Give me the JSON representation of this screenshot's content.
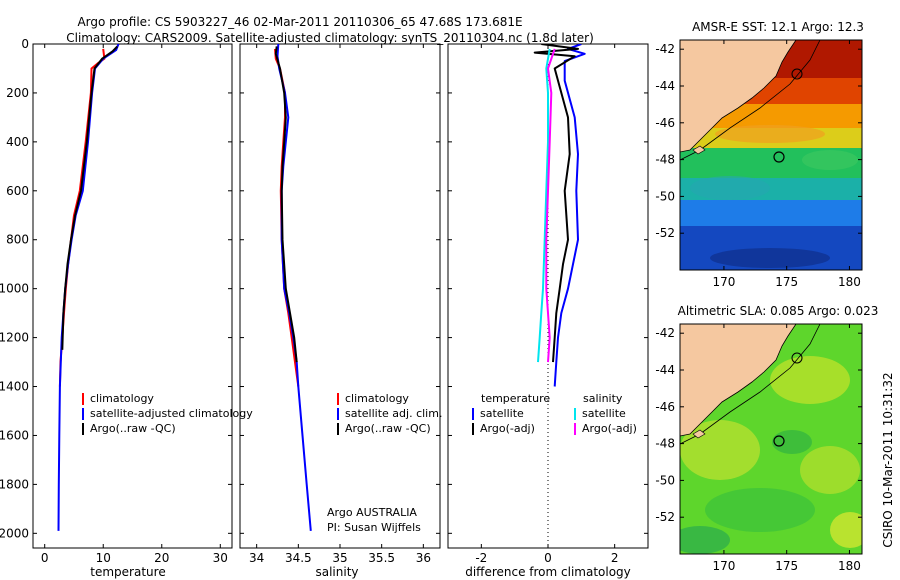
{
  "header": {
    "line1": "Argo profile: CS 5903227_46 02-Mar-2011 20110306_65 47.68S 173.681E",
    "line2": "Climatology: CARS2009. Satellite-adjusted climatology: synTS_20110304.nc (1.8d later)"
  },
  "side_label": "CSIRO 10-Mar-2011 10:31:32",
  "colors": {
    "red": "#ff0000",
    "blue": "#0000ff",
    "black": "#000000",
    "cyan": "#00e5ee",
    "magenta": "#ff00ff",
    "land": "#f5c8a0"
  },
  "chart_data": [
    {
      "type": "line",
      "name": "temperature-profile",
      "xlabel": "temperature",
      "ylabel": "",
      "xlim": [
        -2,
        32
      ],
      "ylim": [
        2060,
        0
      ],
      "xticks": [
        "0",
        "10",
        "20",
        "30"
      ],
      "yticks": [
        "0",
        "200",
        "400",
        "600",
        "800",
        "1000",
        "1200",
        "1400",
        "1600",
        "1800",
        "2000"
      ],
      "legend": [
        "climatology",
        "satellite-adjusted climatology",
        "Argo(..raw -QC)"
      ],
      "series": [
        {
          "name": "climatology",
          "color": "red",
          "x": [
            10.0,
            10.2,
            9.0,
            8.0,
            7.9,
            7.0,
            6.0,
            5.0,
            4.5,
            4.0,
            3.6,
            3.3,
            3.0,
            2.7,
            2.6
          ],
          "y": [
            20,
            60,
            80,
            100,
            200,
            400,
            600,
            700,
            800,
            900,
            1000,
            1100,
            1200,
            1300,
            1400
          ]
        },
        {
          "name": "satellite-adjusted climatology",
          "color": "blue",
          "x": [
            12.6,
            12.2,
            10.0,
            8.6,
            8.1,
            7.4,
            6.5,
            5.3,
            4.6,
            4.0,
            3.5,
            3.2,
            2.9,
            2.6,
            2.5,
            2.4,
            2.35
          ],
          "y": [
            0,
            25,
            60,
            100,
            200,
            400,
            600,
            700,
            800,
            900,
            1000,
            1100,
            1200,
            1400,
            1600,
            1800,
            1990
          ]
        },
        {
          "name": "Argo(..raw -QC)",
          "color": "black",
          "x": [
            12.4,
            11.6,
            9.8,
            8.5,
            8.0,
            7.2,
            6.2,
            5.2,
            4.5,
            3.9,
            3.5,
            3.2,
            3.0
          ],
          "y": [
            10,
            30,
            60,
            100,
            200,
            400,
            600,
            700,
            800,
            900,
            1000,
            1100,
            1250
          ]
        }
      ]
    },
    {
      "type": "line",
      "name": "salinity-profile",
      "xlabel": "salinity",
      "xlim": [
        33.8,
        36.2
      ],
      "ylim": [
        2060,
        0
      ],
      "xticks": [
        "34",
        "34.5",
        "35",
        "35.5",
        "36"
      ],
      "legend": [
        "climatology",
        "satellite adj. clim.",
        "Argo(..raw -QC)"
      ],
      "annotation": [
        "Argo AUSTRALIA",
        "PI: Susan Wijffels"
      ],
      "series": [
        {
          "name": "climatology",
          "color": "red",
          "x": [
            34.22,
            34.23,
            34.28,
            34.34,
            34.34,
            34.32,
            34.3,
            34.29,
            34.3,
            34.33,
            34.38,
            34.42,
            34.46,
            34.5
          ],
          "y": [
            20,
            60,
            100,
            200,
            300,
            400,
            500,
            600,
            800,
            1000,
            1100,
            1200,
            1300,
            1400
          ]
        },
        {
          "name": "satellite adj. clim.",
          "color": "blue",
          "x": [
            34.26,
            34.25,
            34.27,
            34.34,
            34.38,
            34.35,
            34.32,
            34.3,
            34.3,
            34.33,
            34.39,
            34.44,
            34.48,
            34.5,
            34.55,
            34.6,
            34.65
          ],
          "y": [
            0,
            50,
            100,
            200,
            300,
            400,
            500,
            600,
            800,
            1000,
            1100,
            1200,
            1300,
            1400,
            1600,
            1800,
            1990
          ]
        },
        {
          "name": "Argo(..raw -QC)",
          "color": "black",
          "x": [
            34.24,
            34.23,
            34.28,
            34.33,
            34.35,
            34.33,
            34.31,
            34.3,
            34.31,
            34.35,
            34.4,
            34.45,
            34.48
          ],
          "y": [
            10,
            40,
            100,
            200,
            300,
            400,
            500,
            600,
            800,
            1000,
            1100,
            1200,
            1300
          ]
        }
      ]
    },
    {
      "type": "line",
      "name": "difference-profile",
      "xlabel": "difference from climatology",
      "xlim": [
        -3,
        3
      ],
      "ylim": [
        2060,
        0
      ],
      "xticks": [
        "-2",
        "0",
        "2"
      ],
      "legend_groups": [
        {
          "title": "temperature",
          "items": [
            "satellite",
            "Argo(-adj)"
          ]
        },
        {
          "title": "salinity",
          "items": [
            "satellite",
            "Argo(-adj)"
          ]
        }
      ],
      "series": [
        {
          "name": "temperature satellite",
          "color": "blue",
          "x": [
            1.0,
            0.6,
            1.1,
            0.5,
            0.5,
            0.8,
            0.9,
            0.85,
            0.9,
            0.75,
            0.6,
            0.4,
            0.3,
            0.25,
            0.2
          ],
          "y": [
            0,
            20,
            40,
            70,
            150,
            300,
            450,
            600,
            800,
            900,
            1000,
            1100,
            1200,
            1300,
            1400
          ]
        },
        {
          "name": "temperature Argo(-adj)",
          "color": "black",
          "x": [
            -0.2,
            0.9,
            -0.4,
            0.8,
            0.2,
            0.6,
            0.65,
            0.5,
            0.6,
            0.45,
            0.35,
            0.25,
            0.2,
            0.15
          ],
          "y": [
            0,
            20,
            35,
            50,
            100,
            300,
            450,
            600,
            800,
            900,
            1000,
            1100,
            1200,
            1300
          ]
        },
        {
          "name": "salinity satellite",
          "color": "cyan",
          "x": [
            0.05,
            -0.05,
            0.0,
            0.0,
            -0.05,
            -0.1,
            -0.15,
            -0.2,
            -0.25,
            -0.3
          ],
          "y": [
            20,
            100,
            200,
            400,
            600,
            800,
            1000,
            1100,
            1200,
            1300
          ]
        },
        {
          "name": "salinity Argo(-adj)",
          "color": "magenta",
          "x": [
            0.2,
            0.0,
            0.1,
            0.05,
            0.0,
            -0.05,
            -0.05,
            0.0,
            0.05,
            0.0
          ],
          "y": [
            20,
            100,
            200,
            400,
            600,
            800,
            1000,
            1100,
            1200,
            1300
          ]
        }
      ]
    },
    {
      "type": "heatmap",
      "name": "sst-map",
      "title": "AMSR-E SST: 12.1 Argo: 12.3",
      "xlim": [
        166.5,
        181
      ],
      "ylim": [
        -54,
        -41.5
      ],
      "xticks": [
        "170",
        "175",
        "180"
      ],
      "yticks": [
        "-42",
        "-44",
        "-46",
        "-48",
        "-50",
        "-52"
      ],
      "argo_position": {
        "lon": 173.681,
        "lat": -47.68
      }
    },
    {
      "type": "heatmap",
      "name": "sla-map",
      "title": "Altimetric SLA: 0.085 Argo: 0.023",
      "xlim": [
        166.5,
        181
      ],
      "ylim": [
        -54,
        -41.5
      ],
      "xticks": [
        "170",
        "175",
        "180"
      ],
      "yticks": [
        "-42",
        "-44",
        "-46",
        "-48",
        "-50",
        "-52"
      ],
      "argo_position": {
        "lon": 173.681,
        "lat": -47.68
      }
    }
  ]
}
